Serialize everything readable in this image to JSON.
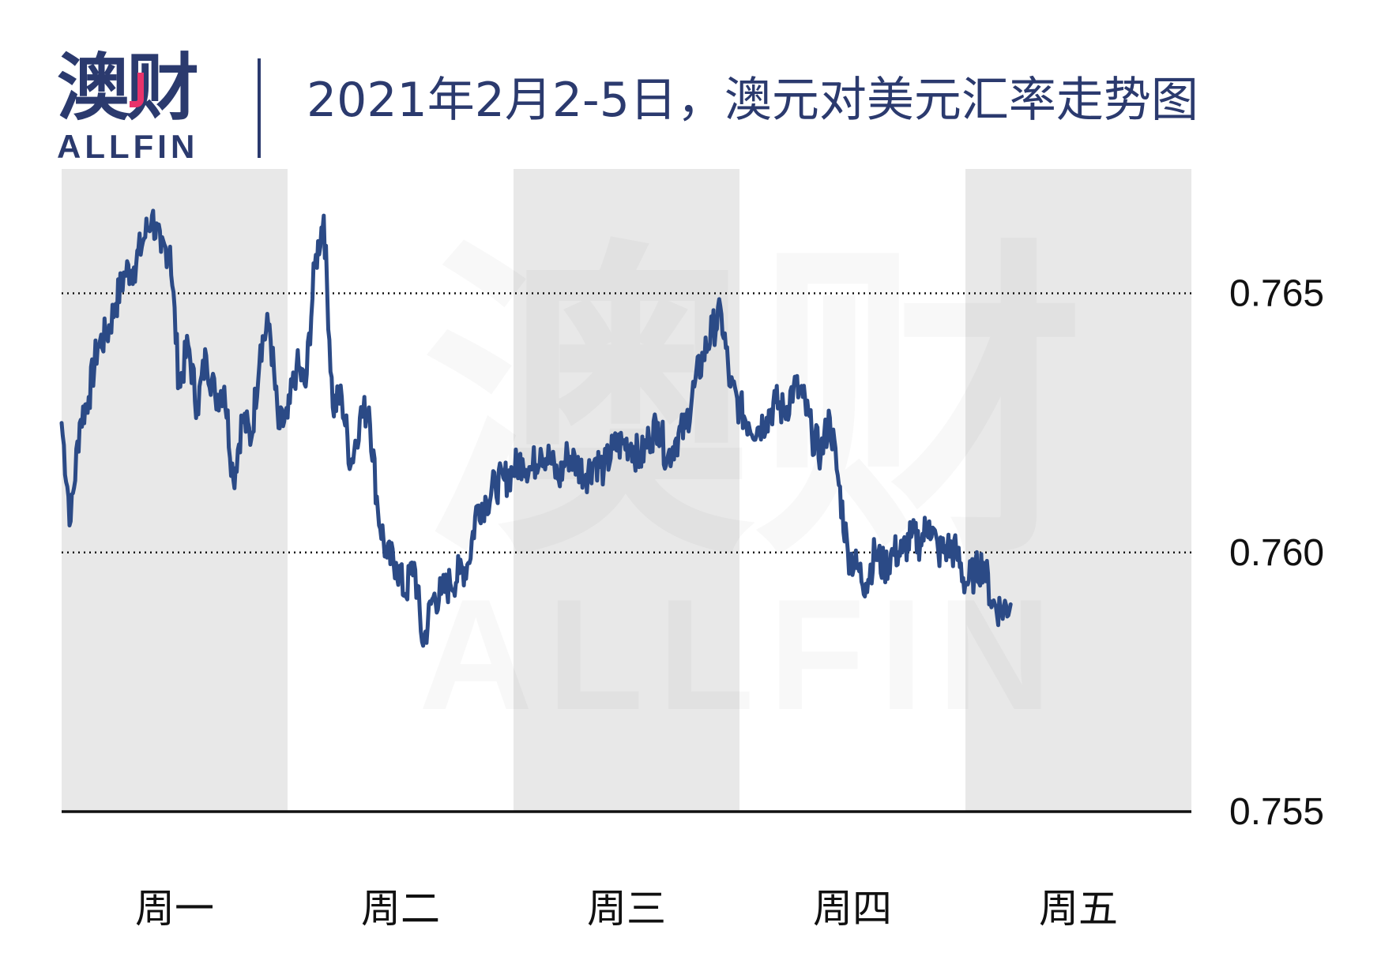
{
  "header": {
    "logo_cn": "澳财",
    "logo_en": "ALLFIN",
    "title": "2021年2月2-5日，澳元对美元汇率走势图"
  },
  "watermark": {
    "cn": "澳财",
    "en": "ALLFIN"
  },
  "colors": {
    "line": "#2b4a86",
    "shade": "#e8e8e8",
    "brand": "#2b3a6e",
    "accent": "#e8336b"
  },
  "chart_data": {
    "type": "line",
    "title": "2021年2月2-5日，澳元对美元汇率走势图",
    "xlabel": "",
    "ylabel": "",
    "categories": [
      "周一",
      "周二",
      "周三",
      "周四",
      "周五"
    ],
    "y_ticks": [
      "0.765",
      "0.760",
      "0.755"
    ],
    "ylim": [
      0.755,
      0.7674
    ],
    "xlim": [
      0,
      5
    ],
    "grid": "dotted horizontal lines at 0.760 and 0.765; alternating shaded day bands",
    "legend": "none",
    "series": [
      {
        "x": [
          0.0,
          0.04,
          0.08,
          0.12,
          0.16,
          0.2,
          0.24,
          0.28,
          0.32,
          0.36,
          0.4,
          0.44,
          0.48,
          0.52,
          0.56,
          0.6,
          0.64,
          0.68,
          0.72,
          0.76,
          0.8,
          0.84,
          0.88,
          0.92,
          0.96,
          1.0,
          1.04,
          1.08,
          1.12,
          1.16,
          1.2,
          1.24,
          1.28,
          1.32,
          1.36,
          1.4,
          1.44,
          1.48,
          1.52,
          1.56,
          1.6,
          1.64,
          1.68,
          1.72,
          1.76,
          1.8,
          1.84,
          1.88,
          1.92,
          1.96,
          2.0,
          2.04,
          2.08,
          2.12,
          2.16,
          2.2,
          2.24,
          2.28,
          2.32,
          2.36,
          2.4,
          2.44,
          2.48,
          2.52,
          2.56,
          2.6,
          2.64,
          2.68,
          2.72,
          2.76,
          2.8,
          2.84,
          2.88,
          2.92,
          2.96,
          3.0,
          3.04,
          3.08,
          3.12,
          3.16,
          3.2,
          3.24,
          3.28,
          3.32,
          3.36,
          3.4,
          3.44,
          3.48,
          3.52,
          3.56,
          3.6,
          3.64,
          3.68,
          3.72,
          3.76,
          3.8,
          3.84,
          3.88,
          3.92,
          3.96,
          4.0,
          4.04,
          4.08,
          4.12,
          4.16,
          4.2
        ],
        "y": [
          0.7625,
          0.7606,
          0.7625,
          0.763,
          0.764,
          0.7642,
          0.7648,
          0.7654,
          0.7655,
          0.766,
          0.7665,
          0.7658,
          0.7659,
          0.7632,
          0.764,
          0.7628,
          0.7638,
          0.763,
          0.7632,
          0.7614,
          0.7626,
          0.7622,
          0.764,
          0.7644,
          0.7624,
          0.7626,
          0.7636,
          0.7632,
          0.7655,
          0.7665,
          0.7628,
          0.763,
          0.7617,
          0.7626,
          0.7628,
          0.7608,
          0.7599,
          0.7598,
          0.7592,
          0.7598,
          0.7582,
          0.7591,
          0.7592,
          0.7594,
          0.7596,
          0.7598,
          0.7609,
          0.761,
          0.7613,
          0.7614,
          0.7616,
          0.7618,
          0.7616,
          0.762,
          0.7618,
          0.7614,
          0.7619,
          0.7617,
          0.7615,
          0.7618,
          0.7616,
          0.762,
          0.7621,
          0.7621,
          0.7618,
          0.7622,
          0.7625,
          0.7618,
          0.7622,
          0.7624,
          0.7632,
          0.7638,
          0.7643,
          0.7646,
          0.7632,
          0.7628,
          0.7625,
          0.7624,
          0.7626,
          0.7629,
          0.7627,
          0.7632,
          0.763,
          0.7623,
          0.7619,
          0.7626,
          0.7613,
          0.76,
          0.7597,
          0.7594,
          0.76,
          0.7597,
          0.76,
          0.76,
          0.7603,
          0.7602,
          0.7606,
          0.76,
          0.7601,
          0.76,
          0.7594,
          0.7596,
          0.7598,
          0.759,
          0.7589,
          0.759
        ]
      }
    ]
  }
}
